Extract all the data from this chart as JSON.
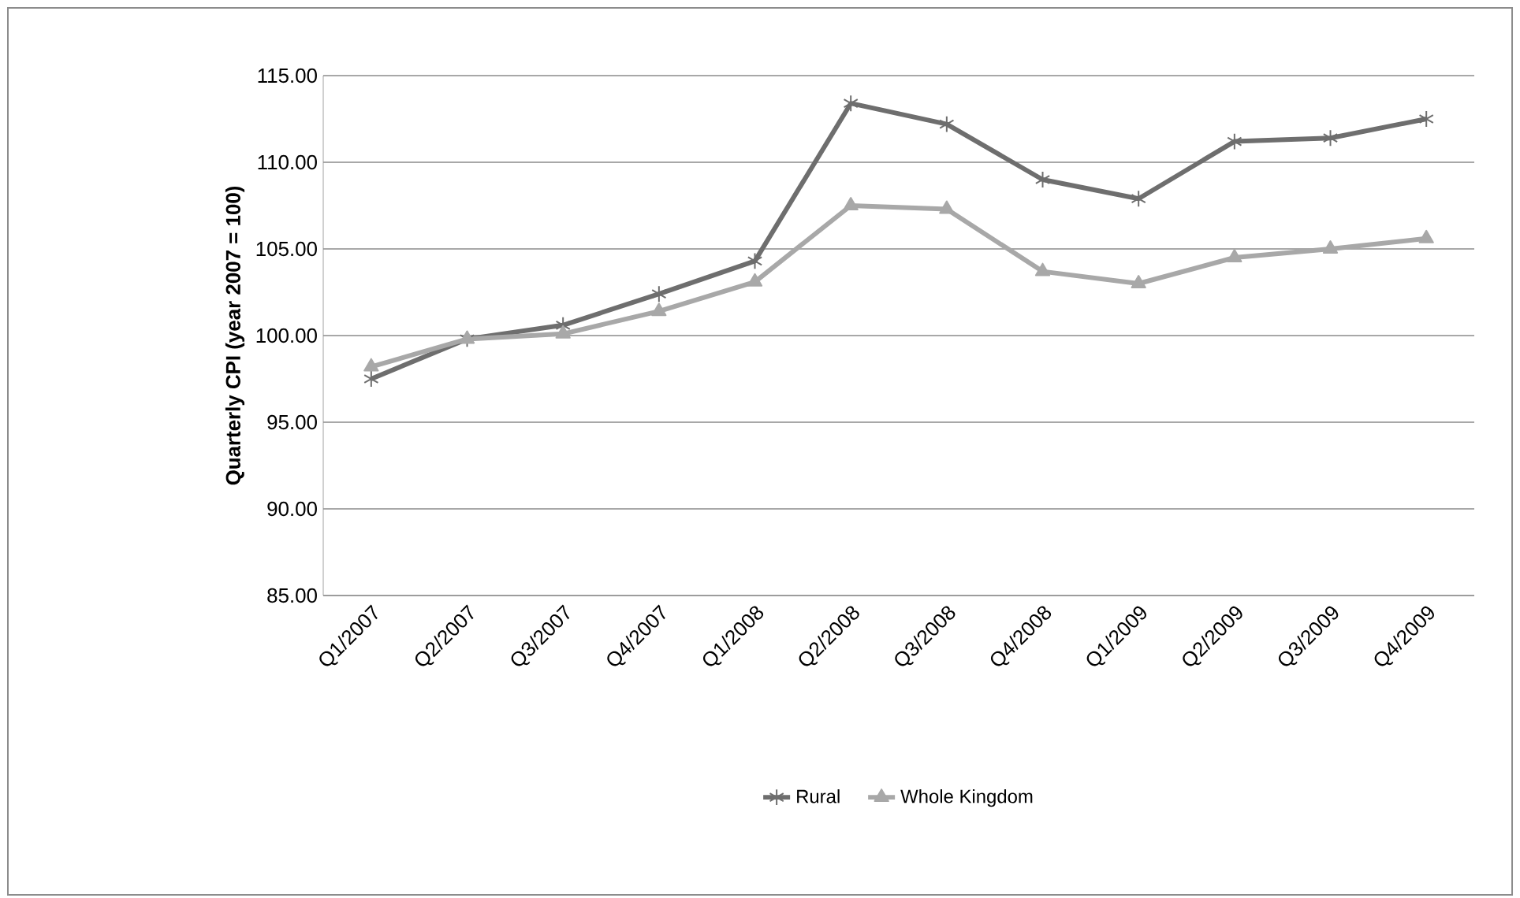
{
  "chart_data": {
    "type": "line",
    "ylabel": "Quarterly CPI (year 2007 = 100)",
    "categories": [
      "Q1/2007",
      "Q2/2007",
      "Q3/2007",
      "Q4/2007",
      "Q1/2008",
      "Q2/2008",
      "Q3/2008",
      "Q4/2008",
      "Q1/2009",
      "Q2/2009",
      "Q3/2009",
      "Q4/2009"
    ],
    "series": [
      {
        "name": "Rural",
        "color": "#6e6e6e",
        "marker": "cross",
        "values": [
          97.5,
          99.8,
          100.6,
          102.4,
          104.3,
          113.4,
          112.2,
          109.0,
          107.9,
          111.2,
          111.4,
          112.5
        ]
      },
      {
        "name": "Whole Kingdom",
        "color": "#a8a8a8",
        "marker": "triangle",
        "values": [
          98.2,
          99.8,
          100.1,
          101.4,
          103.1,
          107.5,
          107.3,
          103.7,
          103.0,
          104.5,
          105.0,
          105.6
        ]
      }
    ],
    "ylim": [
      85,
      115
    ],
    "yticks": [
      {
        "value": 85,
        "label": "85.00"
      },
      {
        "value": 90,
        "label": "90.00"
      },
      {
        "value": 95,
        "label": "95.00"
      },
      {
        "value": 100,
        "label": "100.00"
      },
      {
        "value": 105,
        "label": "105.00"
      },
      {
        "value": 110,
        "label": "110.00"
      },
      {
        "value": 115,
        "label": "115.00"
      }
    ],
    "grid": "y",
    "legend": "bottom",
    "line_style": "solid"
  }
}
